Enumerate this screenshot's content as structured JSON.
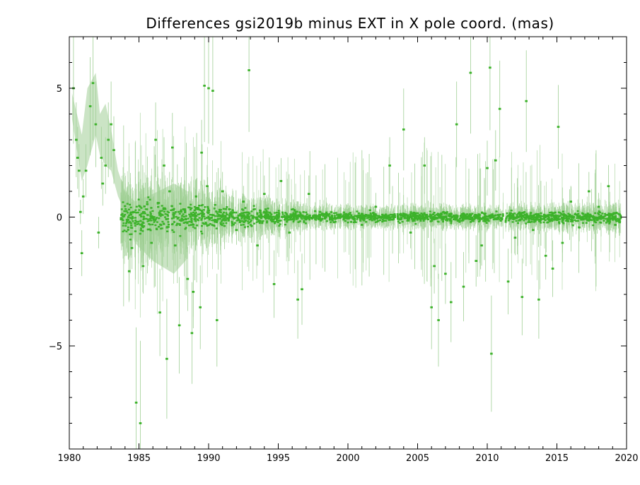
{
  "chart_data": {
    "type": "scatter",
    "title": "Differences gsi2019b minus EXT in X pole coord. (mas)",
    "xlabel": "",
    "ylabel": "",
    "xlim": [
      1980,
      2020
    ],
    "ylim": [
      -9,
      7
    ],
    "x_ticks": [
      1980,
      1985,
      1990,
      1995,
      2000,
      2005,
      2010,
      2015,
      2020
    ],
    "y_ticks": [
      -5,
      0,
      5
    ],
    "y_tick_labels": [
      "−5",
      "0",
      "5"
    ],
    "grid": false,
    "legend": "none",
    "colors": {
      "point": "#3cb22a",
      "error_bar": "#9fcf94",
      "band": "#c2dfbb",
      "axis": "#000000"
    },
    "series": [
      {
        "x": [
          1980.3,
          1980.5,
          1980.6,
          1980.7,
          1980.8,
          1980.9,
          1981.0,
          1981.2,
          1981.5,
          1981.7,
          1981.9,
          1982.1,
          1982.3,
          1982.4,
          1982.6,
          1982.8,
          1983.0,
          1983.2,
          1984.3,
          1984.5,
          1984.6,
          1984.8,
          1985.1,
          1985.3,
          1985.6,
          1985.9,
          1986.2,
          1986.5,
          1986.8,
          1987.0,
          1987.2,
          1987.4,
          1987.6,
          1987.9,
          1988.2,
          1988.5,
          1988.8,
          1988.9,
          1989.1,
          1989.4,
          1989.5,
          1989.7,
          1989.9,
          1990.0,
          1990.3,
          1990.6,
          1991.0,
          1991.5,
          1992.0,
          1992.5,
          1992.9,
          1993.5,
          1994.0,
          1994.7,
          1995.2,
          1995.8,
          1996.4,
          1996.7,
          1997.2,
          1998.0,
          1999.0,
          2000.0,
          2001.0,
          2002.0,
          2003.0,
          2004.0,
          2004.5,
          2005.5,
          2006.0,
          2006.2,
          2006.5,
          2007.0,
          2007.4,
          2007.8,
          2008.3,
          2008.8,
          2009.2,
          2009.6,
          2010.0,
          2010.2,
          2010.3,
          2010.6,
          2010.9,
          2011.5,
          2012.0,
          2012.5,
          2012.8,
          2013.3,
          2013.7,
          2014.2,
          2014.7,
          2015.1,
          2015.4,
          2016.0,
          2016.6,
          2017.3,
          2018.0,
          2018.7,
          2019.2,
          2019.5
        ],
        "y": [
          5.0,
          3.0,
          2.3,
          1.8,
          0.2,
          -1.4,
          0.8,
          1.8,
          4.3,
          5.2,
          3.6,
          -0.6,
          2.3,
          1.3,
          2.0,
          3.0,
          3.6,
          2.6,
          -2.1,
          -1.2,
          0.2,
          -7.2,
          -8.0,
          -1.9,
          0.5,
          -1.0,
          3.0,
          -3.7,
          2.0,
          -5.5,
          1.0,
          2.7,
          -1.1,
          -4.2,
          0.3,
          -2.4,
          -4.5,
          -2.9,
          0.8,
          -3.5,
          2.5,
          5.1,
          1.2,
          5.0,
          4.9,
          -4.0,
          1.0,
          0.3,
          -0.5,
          0.6,
          5.7,
          -1.1,
          0.9,
          -2.6,
          1.4,
          -0.6,
          -3.2,
          -2.8,
          0.9,
          0.2,
          -0.2,
          0.1,
          -0.3,
          0.4,
          2.0,
          3.4,
          -0.6,
          2.0,
          -3.5,
          -1.9,
          -4.0,
          -2.2,
          -3.3,
          3.6,
          -2.7,
          5.6,
          -1.7,
          -1.1,
          1.9,
          5.8,
          -5.3,
          2.2,
          4.2,
          -2.5,
          -0.8,
          -3.1,
          4.5,
          -0.5,
          -3.2,
          -1.5,
          -2.0,
          3.5,
          -1.0,
          0.6,
          -0.4,
          1.0,
          0.4,
          1.2,
          -0.3,
          0.1
        ]
      }
    ]
  }
}
